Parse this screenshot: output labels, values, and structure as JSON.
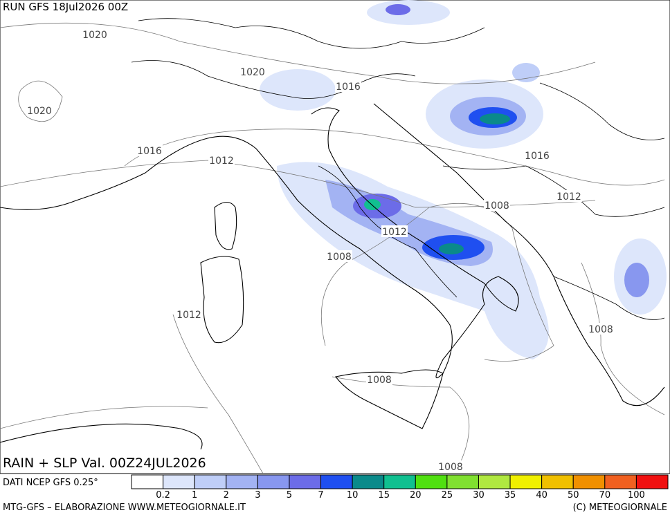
{
  "header": {
    "run": "RUN GFS 18Jul2026 00Z"
  },
  "isobar_labels": [
    "1020",
    "1020",
    "1020",
    "1016",
    "1016",
    "1016",
    "1012",
    "1012",
    "1012",
    "1012",
    "1008",
    "1008",
    "1008",
    "1008",
    "1008"
  ],
  "legend": {
    "ticks": [
      "0.2",
      "1",
      "2",
      "3",
      "5",
      "7",
      "10",
      "15",
      "20",
      "25",
      "30",
      "35",
      "40",
      "50",
      "70",
      "100"
    ],
    "colors": [
      "#ffffff",
      "#dde6fb",
      "#bfcef8",
      "#a3b3f3",
      "#8897ef",
      "#6c6ce8",
      "#1f4ff0",
      "#0a8a8a",
      "#10c090",
      "#50e010",
      "#80e030",
      "#b0e840",
      "#f0f000",
      "#f0c000",
      "#f09000",
      "#f06020",
      "#f01010"
    ]
  },
  "footer": {
    "title": "RAIN + SLP Val. 00Z24JUL2026",
    "source": "DATI NCEP GFS 0.25°",
    "credits": "MTG-GFS – ELABORAZIONE WWW.METEOGIORNALE.IT",
    "copyright": "(C) METEOGIORNALE"
  }
}
